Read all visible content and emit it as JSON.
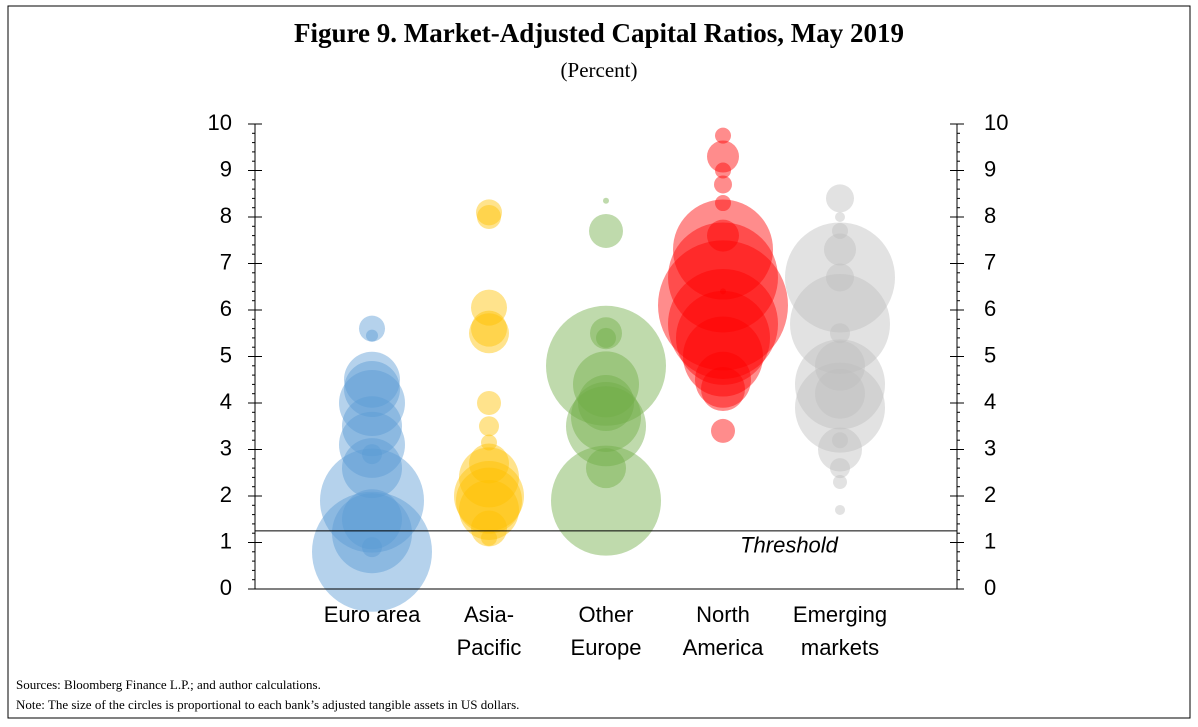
{
  "chart_data": {
    "type": "bubble",
    "title": "Figure 9. Market-Adjusted Capital Ratios, May 2019",
    "subtitle": "(Percent)",
    "categories": [
      "Euro area",
      "Asia-Pacific",
      "Other Europe",
      "North America",
      "Emerging markets"
    ],
    "colors": [
      "#5b9bd5",
      "#ffc000",
      "#70ad47",
      "#ff0000",
      "#bfbfbf"
    ],
    "values": [
      [
        5.6,
        5.45,
        4.5,
        4.3,
        4.0,
        3.5,
        3.1,
        2.9,
        2.6,
        1.9,
        1.5,
        1.2,
        0.8,
        0.9
      ],
      [
        8.1,
        8.0,
        6.05,
        5.6,
        5.5,
        4.0,
        3.5,
        3.15,
        2.7,
        2.4,
        2.0,
        1.9,
        1.7,
        1.3,
        1.1
      ],
      [
        8.35,
        7.7,
        5.5,
        5.4,
        4.8,
        4.4,
        4.0,
        3.7,
        3.5,
        2.6,
        1.9
      ],
      [
        9.75,
        9.3,
        9.0,
        8.7,
        8.3,
        7.6,
        7.3,
        6.7,
        6.4,
        6.1,
        5.7,
        5.4,
        5.0,
        4.5,
        4.3,
        3.4
      ],
      [
        8.4,
        8.0,
        7.7,
        7.3,
        6.7,
        6.7,
        5.7,
        5.5,
        4.8,
        4.4,
        4.2,
        3.9,
        3.2,
        3.0,
        2.6,
        2.3,
        1.7
      ]
    ],
    "sizes": [
      [
        1.69,
        0.36,
        7.84,
        7.84,
        10.89,
        9,
        10.89,
        1,
        9,
        27.04,
        9,
        16,
        36,
        1
      ],
      [
        1.69,
        1.44,
        3.24,
        3.24,
        4,
        1.44,
        1,
        0.64,
        4,
        9,
        12.25,
        10.89,
        9,
        3.24,
        0.64
      ],
      [
        0.09,
        2.89,
        2.56,
        1,
        36,
        10.89,
        7.84,
        12.25,
        16,
        4,
        30.25
      ],
      [
        0.64,
        2.56,
        0.64,
        0.81,
        0.64,
        2.56,
        25,
        30.25,
        0.09,
        42.25,
        30.25,
        22.09,
        16,
        7.84,
        4.84,
        1.44
      ],
      [
        1.96,
        0.25,
        0.64,
        2.56,
        30.25,
        1.96,
        25,
        1,
        6.25,
        20.25,
        6.25,
        20.25,
        0.64,
        4.84,
        1,
        0.49,
        0.25
      ]
    ],
    "ylim": [
      0,
      10
    ],
    "yticks": [
      0,
      1,
      2,
      3,
      4,
      5,
      6,
      7,
      8,
      9,
      10
    ],
    "y2lim": [
      0,
      10
    ],
    "y2ticks": [
      0,
      1,
      2,
      3,
      4,
      5,
      6,
      7,
      8,
      9,
      10
    ],
    "minor_tick_step": 0.2,
    "threshold": {
      "value": 1.25,
      "label": "Threshold"
    },
    "sources": "Sources: Bloomberg Finance L.P.; and author calculations.",
    "note": "Note: The size of the circles is proportional to each bank’s adjusted tangible assets in US dollars."
  }
}
